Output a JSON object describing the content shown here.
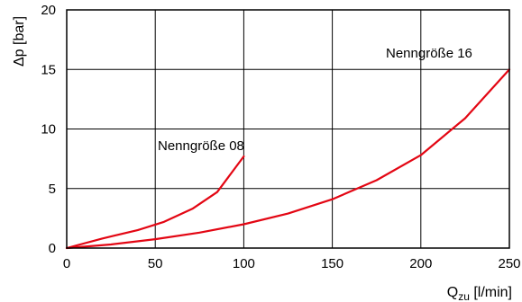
{
  "chart_data": {
    "type": "line",
    "xlabel": {
      "main": "Q",
      "sub": "zu",
      "unit": " [l/min]"
    },
    "ylabel": "Δp [bar]",
    "xlim": [
      0,
      250
    ],
    "ylim": [
      0,
      20
    ],
    "x_ticks": [
      0,
      50,
      100,
      150,
      200,
      250
    ],
    "y_ticks": [
      0,
      5,
      10,
      15,
      20
    ],
    "grid": true,
    "line_color": "#e30613",
    "series": [
      {
        "name": "Nenngröße 08",
        "x": [
          0,
          20,
          40,
          55,
          71,
          85,
          100
        ],
        "y": [
          0,
          0.8,
          1.5,
          2.2,
          3.3,
          4.7,
          7.7
        ]
      },
      {
        "name": "Nenngröße 16",
        "x": [
          0,
          25,
          50,
          75,
          100,
          125,
          150,
          175,
          200,
          225,
          250
        ],
        "y": [
          0,
          0.3,
          0.75,
          1.3,
          2.0,
          2.9,
          4.1,
          5.7,
          7.8,
          10.9,
          15.0
        ]
      }
    ]
  }
}
